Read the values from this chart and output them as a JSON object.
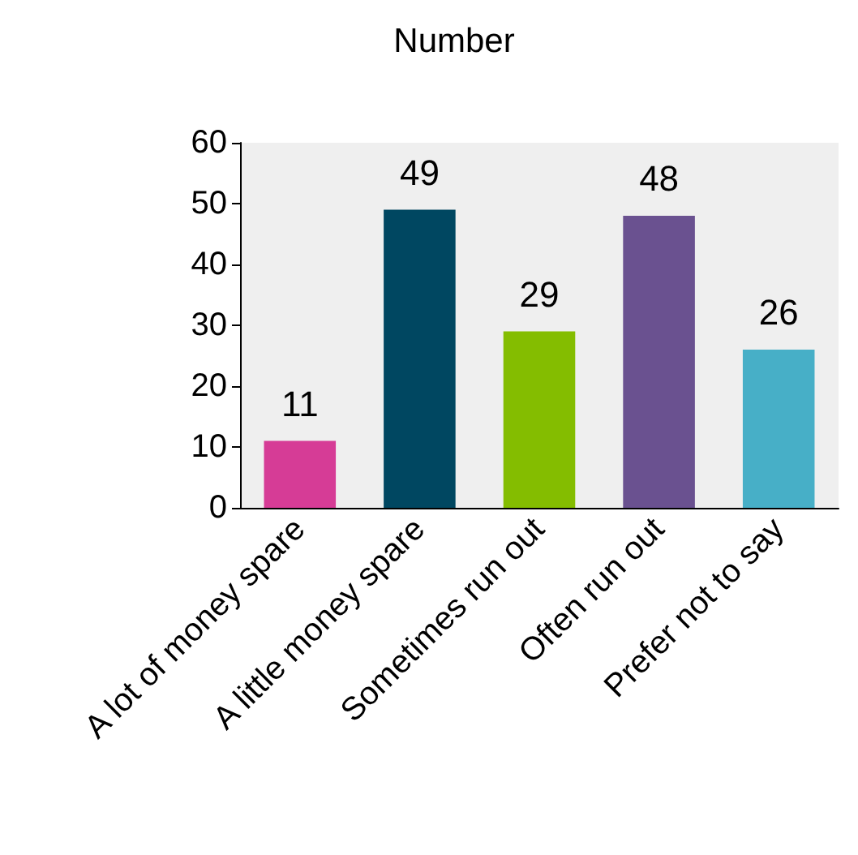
{
  "chart_data": {
    "type": "bar",
    "title": "Number",
    "categories": [
      "A lot of money spare",
      "A little money spare",
      "Sometimes run out",
      "Often run out",
      "Prefer not to say"
    ],
    "values": [
      11,
      49,
      29,
      48,
      26
    ],
    "colors": [
      "#d63c96",
      "#004761",
      "#84bd00",
      "#6a5190",
      "#47afc7"
    ],
    "ylim": [
      0,
      60
    ],
    "yticks": [
      0,
      10,
      20,
      30,
      40,
      50,
      60
    ],
    "grid": false,
    "data_labels": true
  }
}
